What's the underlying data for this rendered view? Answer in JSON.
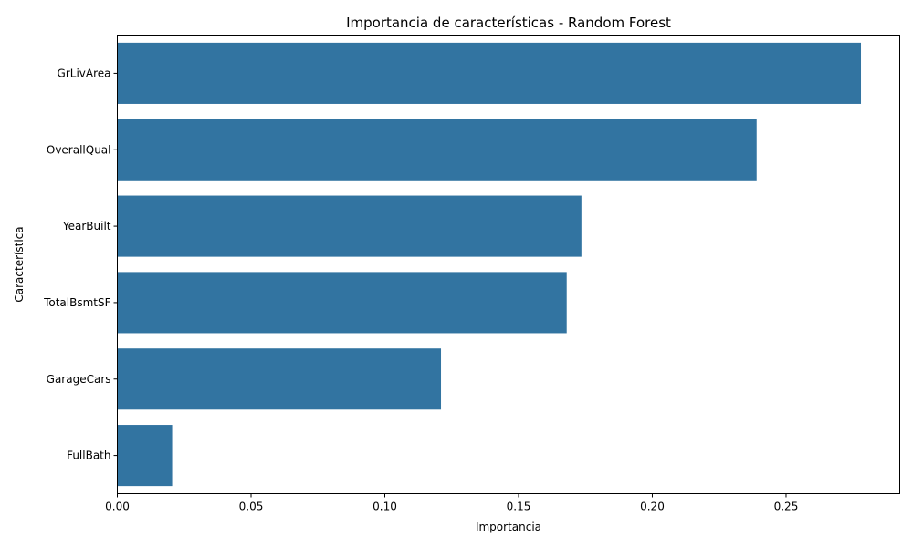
{
  "chart_data": {
    "type": "bar",
    "orientation": "horizontal",
    "title": "Importancia de características - Random Forest",
    "xlabel": "Importancia",
    "ylabel": "Característica",
    "categories": [
      "GrLivArea",
      "OverallQual",
      "YearBuilt",
      "TotalBsmtSF",
      "GarageCars",
      "FullBath"
    ],
    "values": [
      0.278,
      0.239,
      0.1735,
      0.168,
      0.121,
      0.0205
    ],
    "xlim": [
      0,
      0.2925
    ],
    "xticks": [
      0.0,
      0.05,
      0.1,
      0.15,
      0.2,
      0.25
    ],
    "xtick_labels": [
      "0.00",
      "0.05",
      "0.10",
      "0.15",
      "0.20",
      "0.25"
    ],
    "bar_color": "#3274a1",
    "grid": false,
    "legend": "none"
  }
}
